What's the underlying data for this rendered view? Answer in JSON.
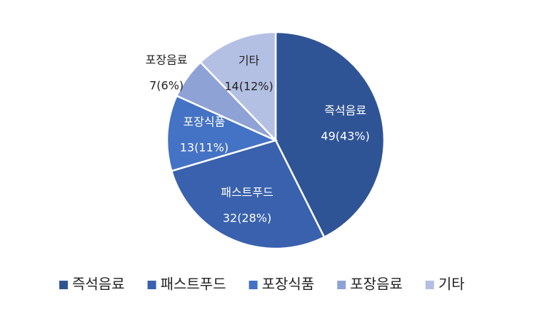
{
  "chart_data": {
    "type": "pie",
    "categories": [
      "즉석음료",
      "패스트푸드",
      "포장식품",
      "포장음료",
      "기타"
    ],
    "values": [
      49,
      32,
      13,
      7,
      14
    ],
    "value_labels": [
      "49(43%)",
      "32(28%)",
      "13(11%)",
      "7(6%)",
      "14(12%)"
    ],
    "colors": [
      "#2f5496",
      "#3961ad",
      "#4472c4",
      "#8fa2d6",
      "#b4c0e3"
    ],
    "legend": "bottom"
  }
}
